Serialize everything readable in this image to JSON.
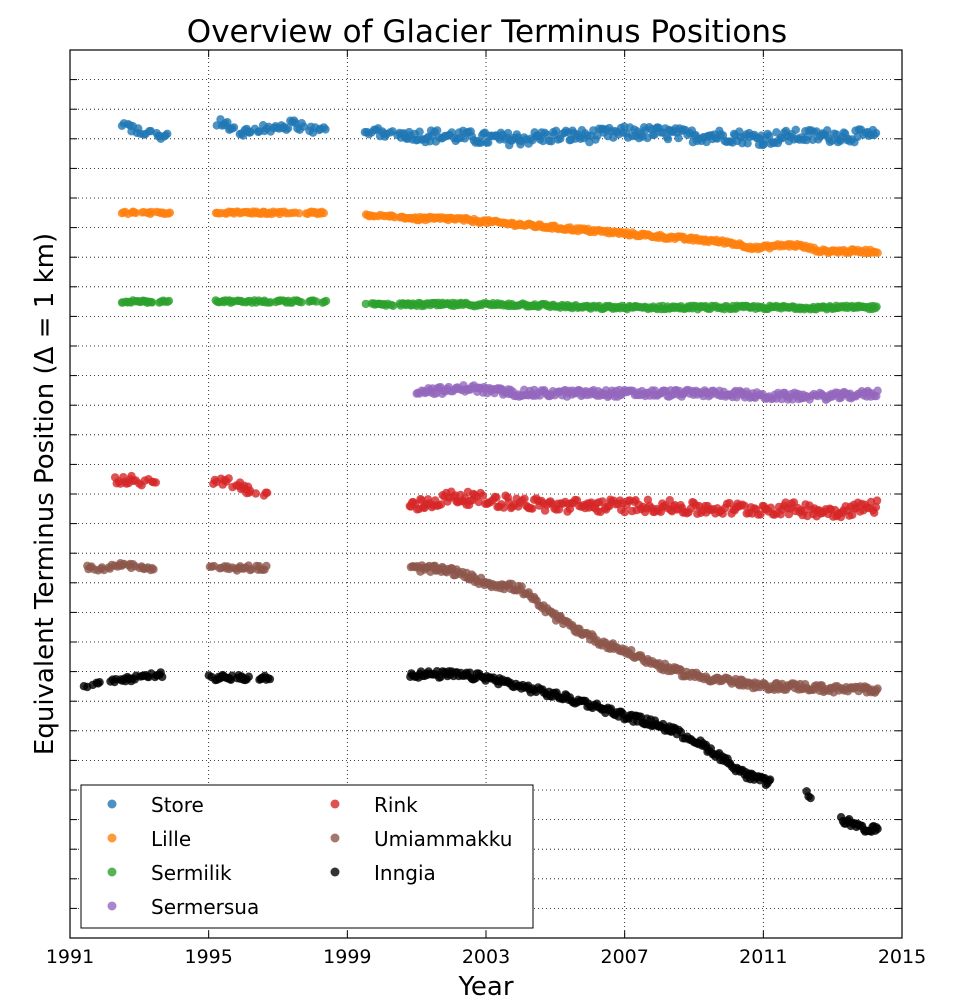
{
  "chart_data": {
    "type": "scatter",
    "title": "Overview of Glacier Terminus Positions",
    "xlabel": "Year",
    "ylabel": "Equivalent Terminus Position (Δ = 1 km)",
    "xlim": [
      1991,
      2015
    ],
    "xticks": [
      "1991",
      "1995",
      "1999",
      "2003",
      "2007",
      "2011",
      "2015"
    ],
    "ylim": [
      -27.5,
      2.5
    ],
    "grid": true,
    "legend_position": "lower-left",
    "legend_columns": 2,
    "series": [
      {
        "name": "Store",
        "color": "#1f77b4",
        "jitter": 0.22,
        "x": [
          1992.5,
          1993.0,
          1993.7,
          1995.3,
          1995.8,
          1996.5,
          1997.5,
          1998.0,
          1998.3,
          2000.0,
          2001.0,
          2002.0,
          2003.0,
          2004.0,
          2005.0,
          2006.0,
          2007.0,
          2008.0,
          2009.0,
          2010.0,
          2011.0,
          2012.0,
          2013.0,
          2014.3
        ],
        "y": [
          0.0,
          -0.3,
          -0.4,
          0.1,
          -0.3,
          -0.2,
          0.0,
          -0.2,
          -0.2,
          -0.3,
          -0.4,
          -0.4,
          -0.5,
          -0.5,
          -0.4,
          -0.4,
          -0.3,
          -0.3,
          -0.4,
          -0.4,
          -0.5,
          -0.4,
          -0.4,
          -0.4
        ],
        "gaps": [
          [
            1993.9,
            1995.2
          ],
          [
            1998.4,
            1999.5
          ]
        ]
      },
      {
        "name": "Lille",
        "color": "#ff7f0e",
        "jitter": 0.06,
        "x": [
          1992.5,
          1993.7,
          1995.3,
          1998.3,
          2000.0,
          2001.0,
          2002.0,
          2003.0,
          2004.0,
          2005.0,
          2006.0,
          2007.0,
          2008.0,
          2009.0,
          2010.0,
          2010.8,
          2011.5,
          2012.0,
          2012.7,
          2013.0,
          2014.3
        ],
        "y": [
          -3.0,
          -3.0,
          -3.0,
          -3.0,
          -3.1,
          -3.2,
          -3.2,
          -3.3,
          -3.4,
          -3.5,
          -3.6,
          -3.7,
          -3.8,
          -3.9,
          -4.0,
          -4.2,
          -4.1,
          -4.1,
          -4.3,
          -4.3,
          -4.3
        ],
        "gaps": [
          [
            1993.9,
            1995.2
          ],
          [
            1998.4,
            1999.5
          ]
        ]
      },
      {
        "name": "Sermilik",
        "color": "#2ca02c",
        "jitter": 0.06,
        "x": [
          1992.5,
          1993.7,
          1995.3,
          1998.3,
          2000.0,
          2002.0,
          2004.0,
          2006.0,
          2008.0,
          2010.0,
          2012.0,
          2014.3
        ],
        "y": [
          -6.0,
          -6.0,
          -6.0,
          -6.0,
          -6.1,
          -6.1,
          -6.1,
          -6.2,
          -6.2,
          -6.2,
          -6.2,
          -6.2
        ],
        "gaps": [
          [
            1993.9,
            1995.2
          ],
          [
            1998.4,
            1999.5
          ]
        ]
      },
      {
        "name": "Sermersua",
        "color": "#9467bd",
        "jitter": 0.12,
        "x": [
          2001.0,
          2002.0,
          2002.5,
          2003.0,
          2004.0,
          2005.0,
          2006.0,
          2007.0,
          2008.0,
          2009.0,
          2010.0,
          2011.0,
          2012.0,
          2013.0,
          2014.3
        ],
        "y": [
          -9.0,
          -9.0,
          -8.9,
          -9.0,
          -9.1,
          -9.1,
          -9.1,
          -9.1,
          -9.1,
          -9.1,
          -9.1,
          -9.2,
          -9.2,
          -9.2,
          -9.1
        ],
        "gaps": []
      },
      {
        "name": "Rink",
        "color": "#d62728",
        "jitter": 0.22,
        "x": [
          1992.3,
          1993.3,
          1995.3,
          1996.5,
          2001.0,
          2002.0,
          2003.0,
          2004.0,
          2005.0,
          2006.0,
          2007.0,
          2008.0,
          2009.0,
          2010.0,
          2011.0,
          2012.0,
          2013.0,
          2014.3
        ],
        "y": [
          -12.0,
          -12.1,
          -12.0,
          -12.5,
          -12.9,
          -12.6,
          -12.7,
          -12.8,
          -12.9,
          -12.9,
          -12.9,
          -12.9,
          -13.0,
          -13.0,
          -13.0,
          -13.0,
          -13.1,
          -12.9
        ],
        "gaps": [
          [
            1993.5,
            1995.1
          ],
          [
            1996.7,
            2000.8
          ]
        ]
      },
      {
        "name": "Umiammakku",
        "color": "#8c564b",
        "jitter": 0.12,
        "x": [
          1991.5,
          1992.0,
          1992.5,
          1993.3,
          1995.2,
          1996.0,
          1996.5,
          2001.0,
          2002.0,
          2003.0,
          2004.0,
          2004.8,
          2005.5,
          2006.3,
          2007.0,
          2007.8,
          2008.5,
          2009.3,
          2010.0,
          2010.8,
          2012.0,
          2013.0,
          2014.3
        ],
        "y": [
          -15.0,
          -15.0,
          -14.9,
          -15.0,
          -15.0,
          -15.0,
          -15.0,
          -15.0,
          -15.1,
          -15.5,
          -15.7,
          -16.5,
          -17.0,
          -17.5,
          -17.8,
          -18.2,
          -18.5,
          -18.7,
          -18.8,
          -19.0,
          -19.0,
          -19.1,
          -19.1
        ],
        "gaps": [
          [
            1993.5,
            1995.0
          ],
          [
            1996.7,
            2000.8
          ]
        ]
      },
      {
        "name": "Inngia",
        "color": "#000000",
        "jitter": 0.12,
        "x": [
          1991.4,
          1992.0,
          1993.0,
          1993.5,
          1995.2,
          1996.0,
          1996.7,
          2001.0,
          2002.0,
          2003.0,
          2004.0,
          2005.0,
          2006.0,
          2007.0,
          2008.0,
          2009.0,
          2009.8,
          2010.5,
          2011.0,
          2012.3,
          2013.3,
          2013.8,
          2014.0,
          2014.3
        ],
        "y": [
          -19.0,
          -18.9,
          -18.7,
          -18.6,
          -18.7,
          -18.7,
          -18.7,
          -18.6,
          -18.6,
          -18.7,
          -19.0,
          -19.3,
          -19.6,
          -20.0,
          -20.3,
          -20.8,
          -21.4,
          -22.0,
          -22.2,
          -22.6,
          -23.5,
          -23.8,
          -23.9,
          -23.8
        ],
        "gaps": [
          [
            1993.7,
            1995.0
          ],
          [
            1996.8,
            2000.8
          ],
          [
            2011.2,
            2012.2
          ],
          [
            2012.4,
            2013.2
          ]
        ]
      }
    ]
  }
}
